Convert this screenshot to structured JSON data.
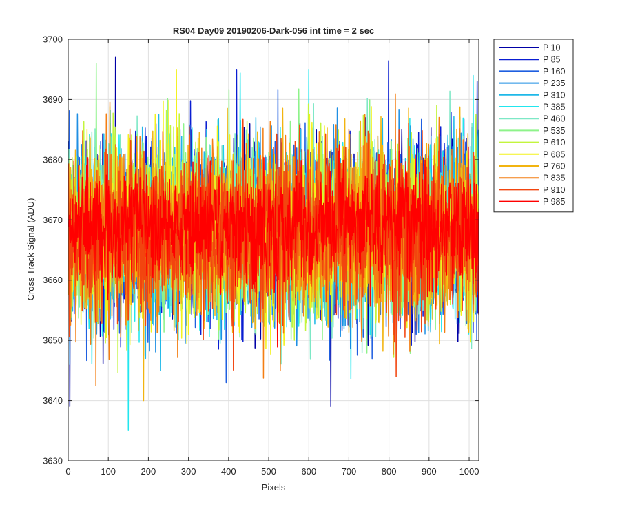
{
  "figure": {
    "title": "RS04 Day09 20190206-Dark-056 int time = 2 sec",
    "xlabel": "Pixels",
    "ylabel": "Cross Track Signal (ADU)"
  },
  "chart_data": {
    "type": "line",
    "title": "RS04 Day09 20190206-Dark-056 int time = 2 sec",
    "xlabel": "Pixels",
    "ylabel": "Cross Track Signal (ADU)",
    "xlim": [
      0,
      1024
    ],
    "ylim": [
      3630,
      3700
    ],
    "xticks": [
      0,
      100,
      200,
      300,
      400,
      500,
      600,
      700,
      800,
      900,
      1000
    ],
    "yticks": [
      3630,
      3640,
      3650,
      3660,
      3670,
      3680,
      3690,
      3700
    ],
    "grid": true,
    "legend_position": "outside-top-right",
    "x_range": [
      1,
      1024
    ],
    "series": [
      {
        "name": "P 10",
        "color": "#0000a6",
        "mean": 3668,
        "spread": 7.0,
        "notable": [
          {
            "x": 4,
            "y": 3639
          },
          {
            "x": 118,
            "y": 3697
          },
          {
            "x": 655,
            "y": 3639
          }
        ]
      },
      {
        "name": "P 85",
        "color": "#0a1ed2",
        "mean": 3668,
        "spread": 7.0,
        "notable": [
          {
            "x": 420,
            "y": 3695
          },
          {
            "x": 1020,
            "y": 3693
          }
        ]
      },
      {
        "name": "P 160",
        "color": "#1f5fe0",
        "mean": 3668,
        "spread": 7.0,
        "notable": []
      },
      {
        "name": "P 235",
        "color": "#1f8fe3",
        "mean": 3668,
        "spread": 7.0,
        "notable": []
      },
      {
        "name": "P 310",
        "color": "#1fb8e8",
        "mean": 3668,
        "spread": 7.0,
        "notable": []
      },
      {
        "name": "P 385",
        "color": "#22e6ee",
        "mean": 3668,
        "spread": 7.0,
        "notable": [
          {
            "x": 150,
            "y": 3635
          },
          {
            "x": 600,
            "y": 3695
          },
          {
            "x": 1010,
            "y": 3694
          }
        ]
      },
      {
        "name": "P 460",
        "color": "#7de8c6",
        "mean": 3668,
        "spread": 7.0,
        "notable": []
      },
      {
        "name": "P 535",
        "color": "#8ef38a",
        "mean": 3668,
        "spread": 7.0,
        "notable": [
          {
            "x": 70,
            "y": 3696
          }
        ]
      },
      {
        "name": "P 610",
        "color": "#c3f53d",
        "mean": 3668,
        "spread": 7.0,
        "notable": []
      },
      {
        "name": "P 685",
        "color": "#f3f21c",
        "mean": 3668,
        "spread": 7.0,
        "notable": [
          {
            "x": 270,
            "y": 3695
          }
        ]
      },
      {
        "name": "P 760",
        "color": "#f2b410",
        "mean": 3668,
        "spread": 7.0,
        "notable": [
          {
            "x": 188,
            "y": 3640
          }
        ]
      },
      {
        "name": "P 835",
        "color": "#f47e13",
        "mean": 3668,
        "spread": 7.0,
        "notable": []
      },
      {
        "name": "P 910",
        "color": "#f2450f",
        "mean": 3668,
        "spread": 7.0,
        "notable": []
      },
      {
        "name": "P 985",
        "color": "#ff0000",
        "mean": 3669,
        "spread": 5.0,
        "notable": []
      }
    ]
  }
}
